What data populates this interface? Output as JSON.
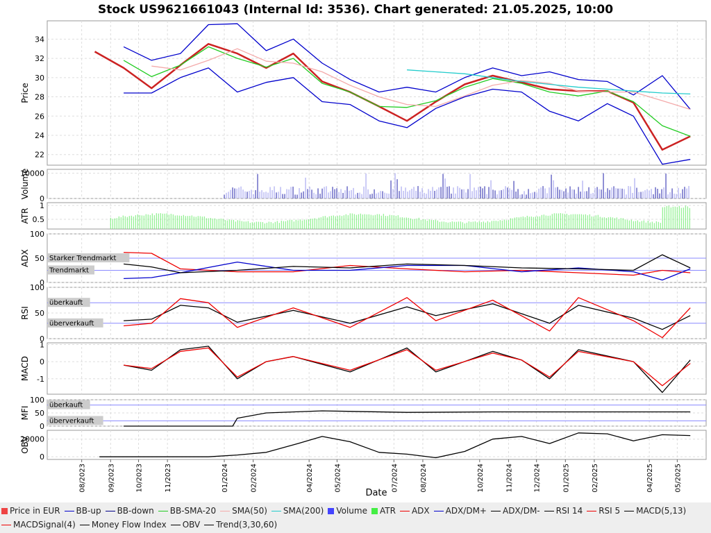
{
  "title": "Stock US9621661043 (Internal Id: 3536). Chart generated: 21.05.2025, 10:00",
  "xlabel": "Date",
  "x_ticks": [
    "08/2023",
    "09/2023",
    "10/2023",
    "11/2023",
    "01/2024",
    "02/2024",
    "04/2024",
    "05/2024",
    "07/2024",
    "08/2024",
    "10/2024",
    "11/2024",
    "12/2024",
    "01/2025",
    "02/2025",
    "04/2025",
    "05/2025"
  ],
  "legend": [
    {
      "label": "Price in EUR",
      "color": "#ee4444",
      "kind": "box"
    },
    {
      "label": "BB-up",
      "color": "#0000cc",
      "kind": "line"
    },
    {
      "label": "BB-down",
      "color": "#000088",
      "kind": "line"
    },
    {
      "label": "BB-SMA-20",
      "color": "#22cc22",
      "kind": "line"
    },
    {
      "label": "SMA(50)",
      "color": "#f4aaaa",
      "kind": "line"
    },
    {
      "label": "SMA(200)",
      "color": "#22cccc",
      "kind": "line"
    },
    {
      "label": "Volume",
      "color": "#4444ff",
      "kind": "box"
    },
    {
      "label": "ATR",
      "color": "#44ee44",
      "kind": "box"
    },
    {
      "label": "ADX",
      "color": "#ee0000",
      "kind": "dotline"
    },
    {
      "label": "ADX/DM+",
      "color": "#0000cc",
      "kind": "dotline"
    },
    {
      "label": "ADX/DM-",
      "color": "#000000",
      "kind": "dotline"
    },
    {
      "label": "RSI 14",
      "color": "#000000",
      "kind": "dotline"
    },
    {
      "label": "RSI 5",
      "color": "#ee0000",
      "kind": "dotline"
    },
    {
      "label": "MACD(5,13)",
      "color": "#000000",
      "kind": "dotline"
    },
    {
      "label": "MACDSignal(4)",
      "color": "#ee0000",
      "kind": "dotline"
    },
    {
      "label": "Money Flow Index",
      "color": "#000000",
      "kind": "dotline"
    },
    {
      "label": "OBV",
      "color": "#000000",
      "kind": "dotline"
    },
    {
      "label": "Trend(3,30,60)",
      "color": "#000000",
      "kind": "line"
    }
  ],
  "chart_data": [
    {
      "type": "line",
      "panel": "Price",
      "ylabel": "Price",
      "yticks": [
        22,
        24,
        26,
        28,
        30,
        32,
        34
      ],
      "ylim": [
        20.9,
        35.9
      ],
      "x": [
        "2023-08-15",
        "2023-09-15",
        "2023-10-15",
        "2023-11-15",
        "2023-12-15",
        "2024-01-15",
        "2024-02-15",
        "2024-03-15",
        "2024-04-15",
        "2024-05-15",
        "2024-06-15",
        "2024-07-15",
        "2024-08-15",
        "2024-09-15",
        "2024-10-15",
        "2024-11-15",
        "2024-12-15",
        "2025-01-15",
        "2025-02-15",
        "2025-03-15",
        "2025-04-15",
        "2025-05-15"
      ],
      "series": [
        {
          "name": "Price in EUR",
          "values": [
            32.7,
            31.0,
            28.9,
            31.3,
            33.5,
            32.5,
            31.0,
            32.5,
            29.6,
            28.5,
            27.0,
            25.5,
            27.5,
            29.3,
            30.2,
            29.5,
            28.8,
            28.6,
            28.6,
            27.4,
            22.5,
            23.9
          ]
        },
        {
          "name": "BB-up",
          "values": [
            null,
            33.2,
            31.8,
            32.5,
            35.5,
            35.6,
            32.8,
            34.0,
            31.5,
            29.8,
            28.5,
            29.0,
            28.5,
            30.0,
            31.0,
            30.2,
            30.6,
            29.8,
            29.6,
            28.2,
            30.2,
            26.7
          ]
        },
        {
          "name": "BB-down",
          "values": [
            null,
            28.4,
            28.4,
            30.0,
            31.0,
            28.5,
            29.5,
            30.0,
            27.5,
            27.2,
            25.5,
            24.8,
            26.8,
            28.0,
            28.8,
            28.5,
            26.5,
            25.5,
            27.3,
            26.0,
            21.0,
            21.5
          ]
        },
        {
          "name": "BB-SMA-20",
          "values": [
            null,
            31.8,
            30.1,
            31.3,
            33.2,
            32.0,
            31.1,
            32.0,
            29.4,
            28.5,
            27.0,
            26.9,
            27.6,
            29.0,
            29.9,
            29.4,
            28.5,
            28.1,
            28.6,
            27.5,
            25.0,
            23.9
          ]
        },
        {
          "name": "SMA(50)",
          "values": [
            null,
            null,
            31.2,
            30.8,
            31.8,
            33.0,
            31.7,
            31.5,
            30.6,
            29.2,
            28.0,
            27.2,
            27.0,
            28.1,
            29.2,
            29.7,
            29.4,
            28.6,
            28.5,
            28.5,
            27.6,
            26.7
          ]
        },
        {
          "name": "SMA(200)",
          "values": [
            null,
            null,
            null,
            null,
            null,
            null,
            null,
            null,
            null,
            null,
            null,
            30.8,
            30.6,
            30.4,
            30.0,
            29.6,
            29.3,
            29.0,
            28.8,
            28.6,
            28.4,
            28.3
          ]
        }
      ]
    },
    {
      "type": "bar",
      "panel": "Volume",
      "ylabel": "Volume",
      "yticks": [
        0,
        10000
      ],
      "ylim": [
        0,
        11500
      ]
    },
    {
      "type": "bar",
      "panel": "ATR",
      "ylabel": "ATR",
      "yticks": [
        0.5,
        1
      ],
      "ylim": [
        0.15,
        1.1
      ]
    },
    {
      "type": "line",
      "panel": "ADX",
      "ylabel": "ADX",
      "yticks": [
        0,
        50,
        100
      ],
      "ylim": [
        0,
        100
      ],
      "annotations": [
        {
          "text": "Starker Trendmarkt",
          "y": 50
        },
        {
          "text": "Trendmarkt",
          "y": 25
        }
      ],
      "x": [
        "2023-09-15",
        "2023-10-15",
        "2023-11-15",
        "2024-01-15",
        "2024-03-15",
        "2024-05-15",
        "2024-07-15",
        "2024-09-15",
        "2024-11-15",
        "2025-01-15",
        "2025-03-15",
        "2025-04-15",
        "2025-05-15"
      ],
      "series": [
        {
          "name": "ADX",
          "values": [
            62,
            60,
            28,
            22,
            22,
            35,
            28,
            22,
            25,
            20,
            15,
            25,
            20
          ]
        },
        {
          "name": "ADX/DM+",
          "values": [
            8,
            10,
            20,
            42,
            25,
            25,
            35,
            35,
            22,
            30,
            22,
            5,
            28
          ]
        },
        {
          "name": "ADX/DM-",
          "values": [
            38,
            32,
            20,
            25,
            33,
            30,
            38,
            35,
            30,
            28,
            25,
            57,
            30
          ]
        }
      ]
    },
    {
      "type": "line",
      "panel": "RSI",
      "ylabel": "RSI",
      "yticks": [
        0,
        50,
        100
      ],
      "ylim": [
        0,
        100
      ],
      "annotations": [
        {
          "text": "überkauft",
          "y": 70
        },
        {
          "text": "überverkauft",
          "y": 30
        }
      ],
      "x": [
        "2023-09-15",
        "2023-10-15",
        "2023-11-15",
        "2023-12-15",
        "2024-01-15",
        "2024-03-15",
        "2024-05-15",
        "2024-07-15",
        "2024-08-15",
        "2024-10-15",
        "2024-12-15",
        "2025-01-15",
        "2025-03-15",
        "2025-04-15",
        "2025-05-15"
      ],
      "series": [
        {
          "name": "RSI 14",
          "values": [
            35,
            38,
            65,
            60,
            32,
            55,
            30,
            62,
            45,
            68,
            30,
            65,
            40,
            18,
            45
          ]
        },
        {
          "name": "RSI 5",
          "values": [
            25,
            30,
            78,
            70,
            22,
            60,
            22,
            80,
            35,
            75,
            15,
            80,
            35,
            2,
            60
          ]
        }
      ]
    },
    {
      "type": "line",
      "panel": "MACD",
      "ylabel": "MACD",
      "yticks": [
        -1,
        0,
        1
      ],
      "ylim": [
        -1.9,
        1.1
      ],
      "x": [
        "2023-09-15",
        "2023-10-15",
        "2023-11-15",
        "2023-12-15",
        "2024-01-15",
        "2024-02-15",
        "2024-03-15",
        "2024-05-15",
        "2024-07-15",
        "2024-08-15",
        "2024-10-15",
        "2024-11-15",
        "2024-12-15",
        "2025-01-15",
        "2025-03-15",
        "2025-04-15",
        "2025-05-15"
      ],
      "series": [
        {
          "name": "MACD(5,13)",
          "values": [
            -0.2,
            -0.5,
            0.7,
            0.9,
            -1.0,
            0.0,
            0.3,
            -0.6,
            0.8,
            -0.6,
            0.6,
            0.1,
            -1.0,
            0.7,
            0.0,
            -1.8,
            0.1
          ]
        },
        {
          "name": "MACDSignal(4)",
          "values": [
            -0.2,
            -0.4,
            0.6,
            0.8,
            -0.9,
            0.0,
            0.3,
            -0.5,
            0.7,
            -0.5,
            0.5,
            0.1,
            -0.9,
            0.6,
            0.0,
            -1.4,
            -0.1
          ]
        }
      ]
    },
    {
      "type": "line",
      "panel": "MFI",
      "ylabel": "MFI",
      "yticks": [
        0,
        50,
        100
      ],
      "ylim": [
        0,
        100
      ],
      "annotations": [
        {
          "text": "überkauft",
          "y": 80
        },
        {
          "text": "überverkauft",
          "y": 20
        }
      ],
      "x": [
        "2023-09-15",
        "2024-01-10",
        "2024-01-15",
        "2024-02-15",
        "2024-04-15",
        "2024-07-15",
        "2024-10-15",
        "2025-01-15",
        "2025-05-15"
      ],
      "series": [
        {
          "name": "Money Flow Index",
          "values": [
            0,
            0,
            30,
            50,
            58,
            52,
            54,
            54,
            54
          ]
        }
      ]
    },
    {
      "type": "line",
      "panel": "OBV",
      "ylabel": "OBV",
      "yticks": [
        0,
        20000
      ],
      "ylim": [
        -3000,
        30000
      ],
      "x": [
        "2023-08-20",
        "2023-12-15",
        "2024-01-15",
        "2024-02-15",
        "2024-03-20",
        "2024-04-15",
        "2024-05-15",
        "2024-06-15",
        "2024-07-15",
        "2024-08-15",
        "2024-09-15",
        "2024-10-15",
        "2024-11-15",
        "2024-12-15",
        "2025-01-15",
        "2025-02-15",
        "2025-03-15",
        "2025-04-15",
        "2025-05-15"
      ],
      "series": [
        {
          "name": "OBV",
          "values": [
            0,
            0,
            2000,
            5000,
            15000,
            23000,
            17000,
            5000,
            3000,
            -1000,
            6000,
            20000,
            23000,
            15000,
            27000,
            26000,
            18000,
            25000,
            24000
          ]
        }
      ]
    }
  ]
}
